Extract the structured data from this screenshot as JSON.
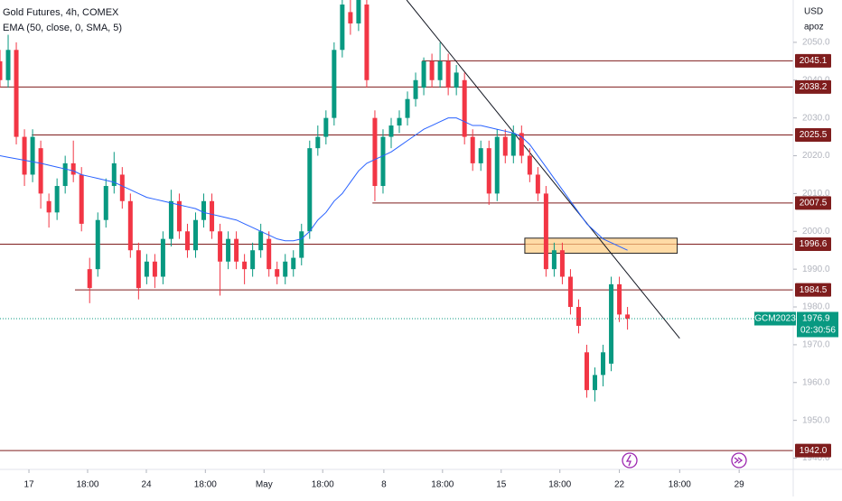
{
  "chart_data": {
    "type": "candlestick",
    "title": "Gold Futures, 4h, COMEX",
    "subtitle": "EMA (50, close, 0, SMA, 5)",
    "currency": "USD",
    "unit_label": "apoz",
    "up_color": "#089981",
    "down_color": "#f23645",
    "ema_color": "#2962ff",
    "level_color": "#7f1d1d",
    "xlim": [
      0,
      97
    ],
    "ylim": [
      1937.5,
      2061.2
    ],
    "xticks": [
      {
        "value": 3.55,
        "label": "17"
      },
      {
        "value": 10.75,
        "label": "18:00"
      },
      {
        "value": 17.96,
        "label": "24"
      },
      {
        "value": 25.2,
        "label": "18:00"
      },
      {
        "value": 32.4,
        "label": "May"
      },
      {
        "value": 39.6,
        "label": "18:00"
      },
      {
        "value": 47.1,
        "label": "8"
      },
      {
        "value": 54.3,
        "label": "18:00"
      },
      {
        "value": 61.5,
        "label": "15"
      },
      {
        "value": 68.7,
        "label": "18:00"
      },
      {
        "value": 76.0,
        "label": "22"
      },
      {
        "value": 83.4,
        "label": "18:00"
      },
      {
        "value": 90.7,
        "label": "29"
      }
    ],
    "yticks": [
      {
        "value": 1940,
        "label": "1940.0"
      },
      {
        "value": 1950,
        "label": "1950.0"
      },
      {
        "value": 1960,
        "label": "1960.0"
      },
      {
        "value": 1970,
        "label": "1970.0"
      },
      {
        "value": 1980,
        "label": "1980.0"
      },
      {
        "value": 1990,
        "label": "1990.0"
      },
      {
        "value": 2000,
        "label": "2000.0"
      },
      {
        "value": 2010,
        "label": "2010.0"
      },
      {
        "value": 2020,
        "label": "2020.0"
      },
      {
        "value": 2030,
        "label": "2030.0"
      },
      {
        "value": 2040,
        "label": "2040.0"
      },
      {
        "value": 2050,
        "label": "2050.0"
      }
    ],
    "candles": [
      [
        2045,
        2048,
        2038,
        2040
      ],
      [
        2040,
        2052,
        2038,
        2048
      ],
      [
        2048,
        2050,
        2023,
        2025
      ],
      [
        2025,
        2027,
        2012,
        2015
      ],
      [
        2015,
        2027,
        2013,
        2025
      ],
      [
        2022,
        2024,
        2006,
        2010
      ],
      [
        2008,
        2010,
        2001,
        2005
      ],
      [
        2005,
        2014,
        2003,
        2012
      ],
      [
        2012,
        2020,
        2010,
        2018
      ],
      [
        2018,
        2024,
        2013,
        2015
      ],
      [
        2015,
        2017,
        2000,
        2002
      ],
      [
        1990,
        1993,
        1981,
        1985
      ],
      [
        1990,
        2005,
        1988,
        2003
      ],
      [
        2003,
        2014,
        2001,
        2012
      ],
      [
        2012,
        2021,
        2010,
        2018
      ],
      [
        2015,
        2017,
        2006,
        2008
      ],
      [
        2008,
        2010,
        1993,
        1995
      ],
      [
        1995,
        1997,
        1982,
        1985
      ],
      [
        1988,
        1994,
        1986,
        1992
      ],
      [
        1992,
        1994,
        1985,
        1988
      ],
      [
        1988,
        2000,
        1986,
        1998
      ],
      [
        1998,
        2011,
        1996,
        2008
      ],
      [
        2008,
        2010,
        1998,
        2000
      ],
      [
        2000,
        2002,
        1993,
        1995
      ],
      [
        1995,
        2005,
        1993,
        2003
      ],
      [
        2003,
        2010,
        2001,
        2008
      ],
      [
        2008,
        2010,
        1998,
        2000
      ],
      [
        2000,
        2002,
        1983,
        1992
      ],
      [
        1992,
        2000,
        1990,
        1998
      ],
      [
        1998,
        2000,
        1990,
        1992
      ],
      [
        1992,
        1994,
        1986,
        1990
      ],
      [
        1990,
        1997,
        1988,
        1995
      ],
      [
        1995,
        2002,
        1993,
        2000
      ],
      [
        1998,
        2000,
        1988,
        1990
      ],
      [
        1990,
        1992,
        1986,
        1988
      ],
      [
        1988,
        1994,
        1986,
        1992
      ],
      [
        1990,
        1995,
        1988,
        1993
      ],
      [
        1993,
        2002,
        1991,
        2000
      ],
      [
        2000,
        2024,
        1998,
        2022
      ],
      [
        2022,
        2028,
        2020,
        2025
      ],
      [
        2025,
        2032,
        2023,
        2030
      ],
      [
        2030,
        2050,
        2028,
        2048
      ],
      [
        2048,
        2062,
        2046,
        2060
      ],
      [
        2058,
        2062,
        2052,
        2055
      ],
      [
        2055,
        2063,
        2053,
        2062
      ],
      [
        2060,
        2062,
        2038,
        2040
      ],
      [
        2030,
        2032,
        2008,
        2012
      ],
      [
        2012,
        2027,
        2010,
        2025
      ],
      [
        2025,
        2030,
        2022,
        2028
      ],
      [
        2028,
        2032,
        2026,
        2030
      ],
      [
        2030,
        2037,
        2028,
        2035
      ],
      [
        2035,
        2042,
        2033,
        2040
      ],
      [
        2038,
        2046,
        2036,
        2045
      ],
      [
        2045,
        2047,
        2038,
        2040
      ],
      [
        2040,
        2050,
        2038,
        2045
      ],
      [
        2045,
        2047,
        2036,
        2038
      ],
      [
        2038,
        2044,
        2036,
        2042
      ],
      [
        2040,
        2042,
        2023,
        2025
      ],
      [
        2025,
        2027,
        2016,
        2018
      ],
      [
        2018,
        2024,
        2016,
        2022
      ],
      [
        2022,
        2024,
        2007,
        2010
      ],
      [
        2010,
        2027,
        2008,
        2025
      ],
      [
        2025,
        2027,
        2018,
        2020
      ],
      [
        2020,
        2028,
        2018,
        2026
      ],
      [
        2026,
        2028,
        2018,
        2020
      ],
      [
        2020,
        2022,
        2013,
        2015
      ],
      [
        2015,
        2017,
        2008,
        2010
      ],
      [
        2010,
        2012,
        1988,
        1990
      ],
      [
        1990,
        1997,
        1988,
        1995
      ],
      [
        1995,
        1997,
        1986,
        1988
      ],
      [
        1988,
        1990,
        1978,
        1980
      ],
      [
        1980,
        1982,
        1973,
        1975
      ],
      [
        1968,
        1970,
        1956,
        1958
      ],
      [
        1958,
        1964,
        1955,
        1962
      ],
      [
        1962,
        1970,
        1959,
        1968
      ],
      [
        1965,
        1988,
        1963,
        1986
      ],
      [
        1986,
        1988,
        1976,
        1978
      ],
      [
        1978,
        1980,
        1974,
        1976.9
      ]
    ],
    "ema": [
      2020,
      2019.6,
      2019.2,
      2018.8,
      2018.4,
      2018,
      2017.5,
      2017,
      2016.5,
      2016,
      2015,
      2014.5,
      2014,
      2013.5,
      2013,
      2012,
      2011,
      2010,
      2009,
      2008.5,
      2008,
      2007.5,
      2007,
      2006.5,
      2006,
      2005,
      2004.5,
      2004,
      2003.5,
      2003,
      2002,
      2001,
      2000,
      1999,
      1998,
      1997.5,
      1997.5,
      1998,
      2000,
      2003,
      2005,
      2008,
      2010,
      2013,
      2016,
      2018,
      2019,
      2020,
      2021,
      2022.5,
      2024,
      2025.5,
      2027,
      2028,
      2029,
      2030,
      2030,
      2029,
      2028,
      2028,
      2027.5,
      2027,
      2026.5,
      2026,
      2025,
      2023,
      2020,
      2017,
      2014,
      2011,
      2008,
      2005,
      2002,
      2000,
      1998,
      1997,
      1996,
      1995
    ],
    "levels": [
      {
        "value": 2045.1,
        "label": "2045.1",
        "from": 51.8
      },
      {
        "value": 2038.2,
        "label": "2038.2",
        "from": 0
      },
      {
        "value": 2025.5,
        "label": "2025.5",
        "from": 3.9
      },
      {
        "value": 2007.5,
        "label": "2007.5",
        "from": 45.7
      },
      {
        "value": 1996.6,
        "label": "1996.6",
        "from": 0
      },
      {
        "value": 1984.5,
        "label": "1984.5",
        "from": 9.2
      },
      {
        "value": 1942,
        "label": "1942.0",
        "from": 0
      }
    ],
    "trendline": [
      [
        49.9,
        2061.2
      ],
      [
        83.4,
        1971.7
      ]
    ],
    "zone": {
      "x": [
        64.4,
        83.1
      ],
      "y": [
        1994.2,
        1998.2
      ]
    },
    "current": {
      "symbol": "GCM2023",
      "value": 1976.9,
      "countdown": "02:30:56"
    }
  }
}
